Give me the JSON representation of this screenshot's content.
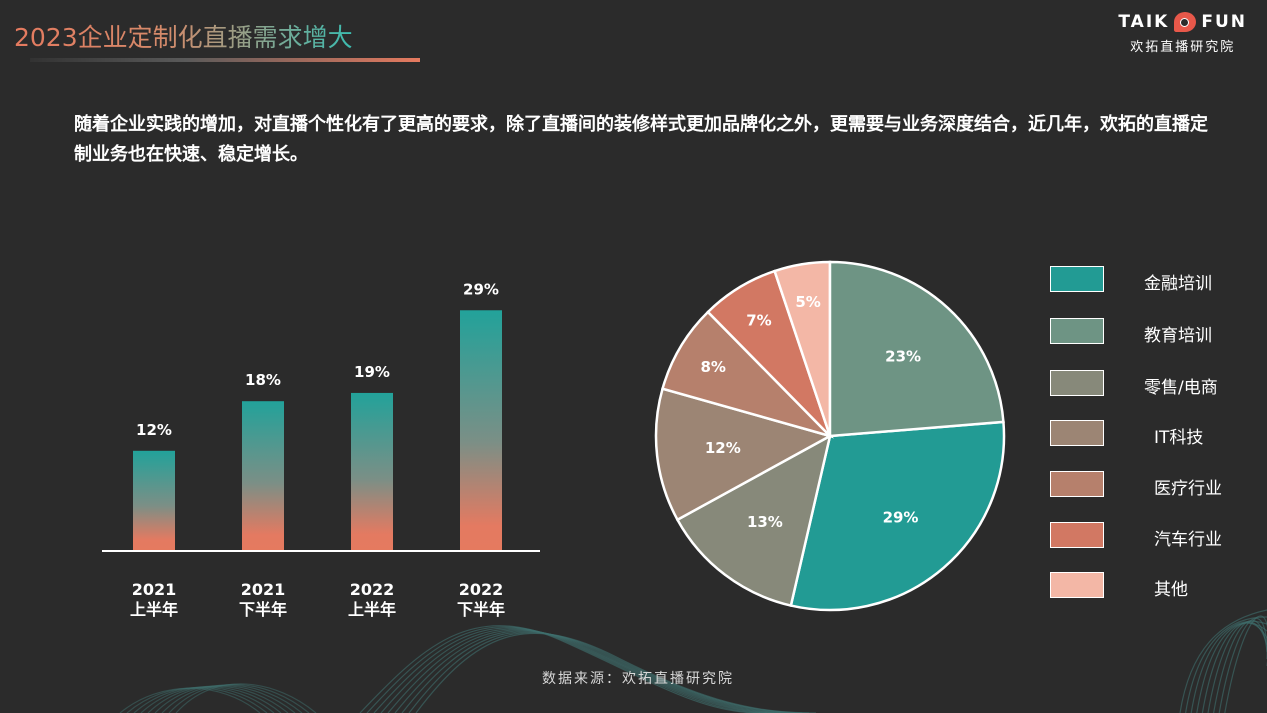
{
  "page": {
    "title": "2023企业定制化直播需求增大",
    "intro": "随着企业实践的增加，对直播个性化有了更高的要求，除了直播间的装修样式更加品牌化之外，更需要与业务深度结合，近几年，欢拓的直播定制业务也在快速、稳定增长。",
    "source": "数据来源：欢拓直播研究院"
  },
  "logo": {
    "main_left": "TAIK",
    "main_right": "FUN",
    "sub": "欢拓直播研究院"
  },
  "colors": {
    "background": "#2b2b2b",
    "accent_teal": "#22a29a",
    "accent_coral": "#e57a5f"
  },
  "chart_data": [
    {
      "type": "bar",
      "categories": [
        "2021 上半年",
        "2021 下半年",
        "2022 上半年",
        "2022 下半年"
      ],
      "category_lines": [
        [
          "2021",
          "上半年"
        ],
        [
          "2021",
          "下半年"
        ],
        [
          "2022",
          "上半年"
        ],
        [
          "2022",
          "下半年"
        ]
      ],
      "values": [
        12,
        18,
        19,
        29
      ],
      "value_labels": [
        "12%",
        "18%",
        "19%",
        "29%"
      ],
      "unit": "%",
      "ylim": [
        0,
        30
      ],
      "grid": false
    },
    {
      "type": "pie",
      "labels": [
        "金融培训",
        "教育培训",
        "零售/电商",
        "IT科技",
        "医疗行业",
        "汽车行业",
        "其他"
      ],
      "values": [
        29,
        23,
        13,
        12,
        8,
        7,
        5
      ],
      "value_labels": [
        "29%",
        "23%",
        "13%",
        "12%",
        "8%",
        "7%",
        "5%"
      ],
      "colors": [
        "#229b94",
        "#6e9484",
        "#87897a",
        "#9c8574",
        "#b6806c",
        "#d27863",
        "#f3b7a6"
      ],
      "legend_position": "right"
    }
  ]
}
